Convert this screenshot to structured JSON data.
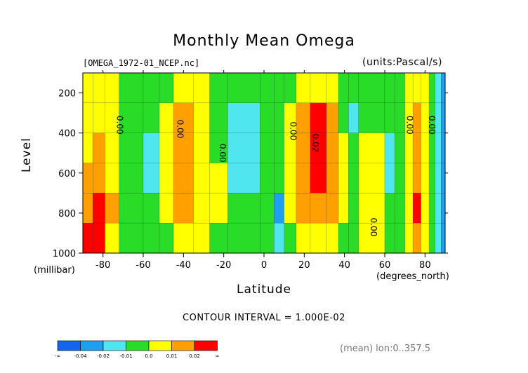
{
  "chart_data": {
    "type": "heatmap",
    "title": "Monthly Mean Omega",
    "file_label": "[OMEGA_1972-01_NCEP.nc]",
    "units_label": "(units:Pascal/s)",
    "xlabel": "Latitude",
    "xlabel_units": "(degrees_north)",
    "ylabel": "Level",
    "ylabel_units": "(millibar)",
    "xlim": [
      -90,
      90
    ],
    "ylim": [
      1000,
      100
    ],
    "x_ticks": [
      "-80",
      "-60",
      "-40",
      "-20",
      "0",
      "20",
      "40",
      "60",
      "80"
    ],
    "x_tick_values": [
      -80,
      -60,
      -40,
      -20,
      0,
      20,
      40,
      60,
      80
    ],
    "y_ticks": [
      "200",
      "400",
      "600",
      "800",
      "1000"
    ],
    "y_tick_values": [
      200,
      400,
      600,
      800,
      1000
    ],
    "contour_note": "CONTOUR INTERVAL = 1.000E-02",
    "mean_note": "(mean) lon:0..357.5",
    "contour_labels": [
      {
        "text": "0.00",
        "lat": -73,
        "level": 360
      },
      {
        "text": "0.00",
        "lat": -43,
        "level": 380
      },
      {
        "text": "0.00",
        "lat": -22,
        "level": 500
      },
      {
        "text": "0.00",
        "lat": 13,
        "level": 390
      },
      {
        "text": "0.02",
        "lat": 24,
        "level": 450
      },
      {
        "text": "0.00",
        "lat": 53,
        "level": 870
      },
      {
        "text": "0.00",
        "lat": 71,
        "level": 360
      },
      {
        "text": "0.00",
        "lat": 82,
        "level": 360
      }
    ],
    "bands": [
      {
        "range": [
          -90,
          -85
        ],
        "levels": [
          3,
          3,
          3,
          4,
          4,
          5
        ]
      },
      {
        "range": [
          -85,
          -79
        ],
        "levels": [
          3,
          3,
          4,
          4,
          5,
          5
        ]
      },
      {
        "range": [
          -79,
          -72
        ],
        "levels": [
          3,
          3,
          3,
          3,
          4,
          3
        ]
      },
      {
        "range": [
          -72,
          -60
        ],
        "levels": [
          2,
          2,
          2,
          2,
          2,
          2
        ]
      },
      {
        "range": [
          -60,
          -52
        ],
        "levels": [
          2,
          2,
          1,
          1,
          2,
          2
        ]
      },
      {
        "range": [
          -52,
          -45
        ],
        "levels": [
          2,
          3,
          3,
          3,
          3,
          2
        ]
      },
      {
        "range": [
          -45,
          -35
        ],
        "levels": [
          3,
          4,
          4,
          4,
          4,
          3
        ]
      },
      {
        "range": [
          -35,
          -27
        ],
        "levels": [
          3,
          3,
          3,
          3,
          3,
          3
        ]
      },
      {
        "range": [
          -27,
          -18
        ],
        "levels": [
          2,
          2,
          2,
          3,
          3,
          2
        ]
      },
      {
        "range": [
          -18,
          -2
        ],
        "levels": [
          2,
          1,
          1,
          1,
          2,
          2
        ]
      },
      {
        "range": [
          -2,
          5
        ],
        "levels": [
          2,
          2,
          2,
          2,
          2,
          2
        ]
      },
      {
        "range": [
          5,
          10
        ],
        "levels": [
          2,
          2,
          2,
          2,
          0,
          1
        ]
      },
      {
        "range": [
          10,
          16
        ],
        "levels": [
          2,
          3,
          3,
          3,
          3,
          2
        ]
      },
      {
        "range": [
          16,
          23
        ],
        "levels": [
          3,
          4,
          4,
          4,
          4,
          3
        ]
      },
      {
        "range": [
          23,
          31
        ],
        "levels": [
          3,
          5,
          5,
          5,
          4,
          3
        ]
      },
      {
        "range": [
          31,
          37
        ],
        "levels": [
          3,
          4,
          4,
          4,
          4,
          3
        ]
      },
      {
        "range": [
          37,
          42
        ],
        "levels": [
          2,
          2,
          3,
          3,
          3,
          2
        ]
      },
      {
        "range": [
          42,
          47
        ],
        "levels": [
          2,
          1,
          2,
          2,
          2,
          2
        ]
      },
      {
        "range": [
          47,
          60
        ],
        "levels": [
          2,
          2,
          3,
          3,
          3,
          3
        ]
      },
      {
        "range": [
          60,
          65
        ],
        "levels": [
          2,
          2,
          1,
          1,
          2,
          2
        ]
      },
      {
        "range": [
          65,
          70
        ],
        "levels": [
          2,
          2,
          2,
          2,
          2,
          2
        ]
      },
      {
        "range": [
          70,
          74
        ],
        "levels": [
          3,
          3,
          3,
          3,
          3,
          3
        ]
      },
      {
        "range": [
          74,
          78
        ],
        "levels": [
          3,
          4,
          4,
          4,
          5,
          4
        ]
      },
      {
        "range": [
          78,
          82
        ],
        "levels": [
          3,
          3,
          3,
          3,
          3,
          3
        ]
      },
      {
        "range": [
          82,
          85
        ],
        "levels": [
          2,
          2,
          2,
          2,
          2,
          2
        ]
      },
      {
        "range": [
          85,
          88
        ],
        "levels": [
          1,
          1,
          1,
          1,
          1,
          1
        ]
      },
      {
        "range": [
          88,
          90
        ],
        "levels": [
          0,
          0,
          0,
          0,
          0,
          0
        ]
      }
    ],
    "colorbar": {
      "colors": [
        "#1464f0",
        "#1ea0f0",
        "#50e6f0",
        "#28dc28",
        "#ffff00",
        "#ffa000",
        "#ff0000"
      ],
      "labels": [
        "-∞",
        "-0.04",
        "-0.02",
        "-0.01",
        "0.0",
        "0.01",
        "0.02",
        "∞"
      ]
    },
    "level_colors": [
      "#1ea0f0",
      "#50e6f0",
      "#28dc28",
      "#ffff00",
      "#ffa000",
      "#ff0000"
    ]
  }
}
